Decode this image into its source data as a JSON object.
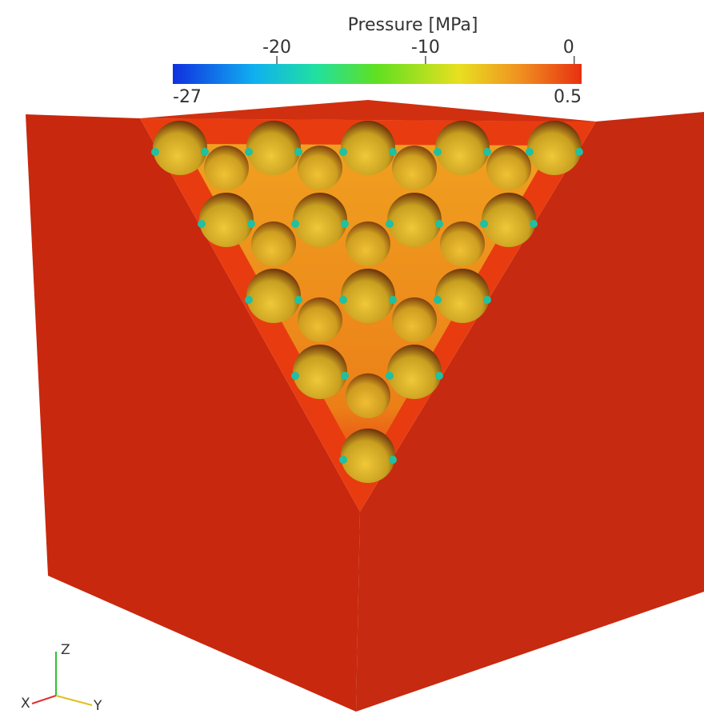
{
  "colorbar": {
    "title": "Pressure [MPa]",
    "range": [
      -27,
      0.5
    ],
    "ticks": [
      -20,
      -10,
      0
    ]
  },
  "axes": {
    "x": "X",
    "y": "Y",
    "z": "Z"
  }
}
